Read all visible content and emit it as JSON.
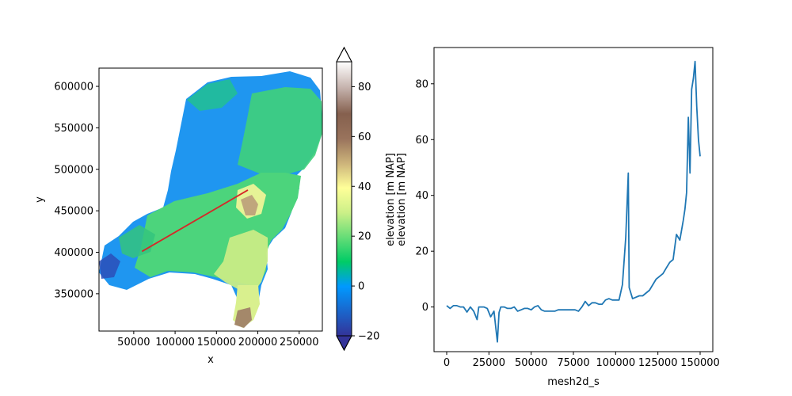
{
  "chart_data": [
    {
      "type": "heatmap",
      "panel": "left-map",
      "xlabel": "x",
      "ylabel": "y",
      "xlim": [
        8000,
        278000
      ],
      "ylim": [
        305000,
        622000
      ],
      "x_ticks": [
        50000,
        100000,
        150000,
        200000,
        250000
      ],
      "x_tick_labels": [
        "50000",
        "100000",
        "150000",
        "200000",
        "250000"
      ],
      "y_ticks": [
        350000,
        400000,
        450000,
        500000,
        550000,
        600000
      ],
      "y_tick_labels": [
        "350000",
        "400000",
        "450000",
        "500000",
        "550000",
        "600000"
      ],
      "transect": {
        "color": "#d62728",
        "start": [
          60000,
          401000
        ],
        "end": [
          188000,
          475000
        ]
      },
      "colorbar": {
        "label": "elevation [m NAP]",
        "label_repeat": "elevation [m NAP]",
        "colormap": "terrain",
        "range": [
          -20,
          90
        ],
        "extend": "both",
        "ticks": [
          -20,
          0,
          20,
          40,
          60,
          80
        ],
        "tick_labels": [
          "−20",
          "0",
          "20",
          "40",
          "60",
          "80"
        ]
      }
    },
    {
      "type": "line",
      "panel": "right-profile",
      "xlabel": "mesh2d_s",
      "ylabel": "",
      "xlim": [
        -7500,
        157500
      ],
      "ylim": [
        -16,
        93
      ],
      "x_ticks": [
        0,
        25000,
        50000,
        75000,
        100000,
        125000,
        150000
      ],
      "x_tick_labels": [
        "0",
        "25000",
        "50000",
        "75000",
        "100000",
        "125000",
        "150000"
      ],
      "y_ticks": [
        0,
        20,
        40,
        60,
        80
      ],
      "y_tick_labels": [
        "0",
        "20",
        "40",
        "60",
        "80"
      ],
      "series": [
        {
          "color": "#1f77b4",
          "x": [
            0,
            2000,
            4000,
            6000,
            8000,
            10000,
            12000,
            14000,
            16000,
            18000,
            19000,
            20000,
            22000,
            24000,
            26000,
            28000,
            30000,
            31000,
            32000,
            34000,
            36000,
            38000,
            40000,
            42000,
            44000,
            46000,
            48000,
            50000,
            52000,
            54000,
            56000,
            58000,
            60000,
            62000,
            64000,
            66000,
            68000,
            70000,
            72000,
            74000,
            76000,
            78000,
            80000,
            82000,
            84000,
            86000,
            88000,
            90000,
            92000,
            94000,
            96000,
            98000,
            100000,
            102000,
            104000,
            106000,
            107500,
            108000,
            110000,
            112000,
            114000,
            116000,
            118000,
            120000,
            122000,
            124000,
            126000,
            128000,
            130000,
            132000,
            134000,
            136000,
            138000,
            140000,
            141000,
            142000,
            143000,
            144000,
            145000,
            146000,
            147000,
            148000,
            149000,
            150000
          ],
          "y": [
            0.5,
            -0.5,
            0.5,
            0.5,
            0,
            0,
            -1.8,
            0,
            -1.5,
            -4.5,
            0,
            0,
            0,
            -0.5,
            -3.5,
            -1.5,
            -12.5,
            -2,
            0,
            0,
            -0.5,
            -0.5,
            0,
            -1.5,
            -1,
            -0.5,
            -0.5,
            -1,
            0,
            0.5,
            -1,
            -1.5,
            -1.5,
            -1.5,
            -1.5,
            -1,
            -1,
            -1,
            -1,
            -1,
            -1,
            -1.5,
            0,
            2,
            0.5,
            1.5,
            1.5,
            1,
            1,
            2.5,
            3,
            2.5,
            2.5,
            2.5,
            8,
            25,
            48,
            7,
            3,
            3.5,
            4,
            4,
            5,
            6,
            8,
            10,
            11,
            12,
            14,
            16,
            17,
            26,
            24,
            31,
            35,
            41,
            68,
            48,
            78,
            82,
            88,
            72,
            60,
            54
          ]
        }
      ]
    }
  ]
}
